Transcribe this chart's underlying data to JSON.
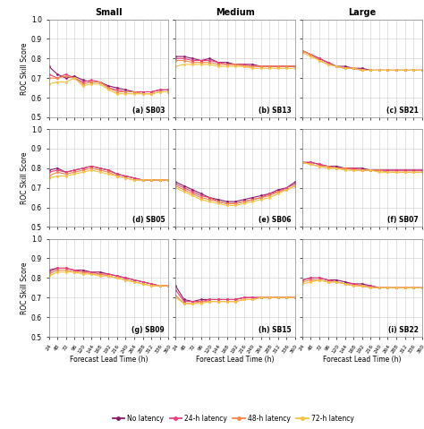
{
  "x_ticks": [
    24,
    48,
    72,
    96,
    120,
    144,
    168,
    192,
    216,
    240,
    264,
    288,
    312,
    336,
    360
  ],
  "col_titles": [
    "Small",
    "Medium",
    "Large"
  ],
  "colors": [
    "#8B1A6B",
    "#E8417A",
    "#F4874B",
    "#F5C242"
  ],
  "legend_labels": [
    "No latency",
    "24-h latency",
    "48-h latency",
    "72-h latency"
  ],
  "ylim": [
    0.5,
    1.0
  ],
  "yticks": [
    0.5,
    0.6,
    0.7,
    0.8,
    0.9,
    1.0
  ],
  "data": {
    "SB03": [
      [
        0.76,
        0.72,
        0.7,
        0.71,
        0.69,
        0.68,
        0.68,
        0.66,
        0.65,
        0.64,
        0.63,
        0.63,
        0.63,
        0.64,
        0.64
      ],
      [
        0.72,
        0.7,
        0.72,
        0.7,
        0.68,
        0.69,
        0.68,
        0.65,
        0.64,
        0.63,
        0.63,
        0.63,
        0.63,
        0.64,
        0.64
      ],
      [
        0.7,
        0.7,
        0.71,
        0.7,
        0.67,
        0.68,
        0.68,
        0.65,
        0.63,
        0.63,
        0.63,
        0.62,
        0.62,
        0.63,
        0.63
      ],
      [
        0.67,
        0.68,
        0.68,
        0.7,
        0.66,
        0.67,
        0.67,
        0.64,
        0.62,
        0.62,
        0.62,
        0.62,
        0.62,
        0.63,
        0.63
      ]
    ],
    "SB13": [
      [
        0.81,
        0.81,
        0.8,
        0.79,
        0.8,
        0.78,
        0.78,
        0.77,
        0.77,
        0.77,
        0.76,
        0.76,
        0.76,
        0.76,
        0.76
      ],
      [
        0.8,
        0.8,
        0.79,
        0.79,
        0.79,
        0.78,
        0.77,
        0.77,
        0.77,
        0.76,
        0.76,
        0.76,
        0.76,
        0.76,
        0.76
      ],
      [
        0.79,
        0.79,
        0.78,
        0.78,
        0.78,
        0.77,
        0.77,
        0.77,
        0.76,
        0.76,
        0.76,
        0.76,
        0.76,
        0.76,
        0.76
      ],
      [
        0.76,
        0.77,
        0.77,
        0.77,
        0.77,
        0.76,
        0.76,
        0.76,
        0.76,
        0.75,
        0.75,
        0.75,
        0.75,
        0.75,
        0.75
      ]
    ],
    "SB21": [
      [
        0.84,
        0.82,
        0.8,
        0.78,
        0.76,
        0.76,
        0.75,
        0.75,
        0.74,
        0.74,
        0.74,
        0.74,
        0.74,
        0.74,
        0.74
      ],
      [
        0.84,
        0.82,
        0.8,
        0.78,
        0.76,
        0.75,
        0.75,
        0.74,
        0.74,
        0.74,
        0.74,
        0.74,
        0.74,
        0.74,
        0.74
      ],
      [
        0.84,
        0.82,
        0.79,
        0.77,
        0.76,
        0.75,
        0.75,
        0.74,
        0.74,
        0.74,
        0.74,
        0.74,
        0.74,
        0.74,
        0.74
      ],
      [
        0.83,
        0.81,
        0.79,
        0.77,
        0.76,
        0.75,
        0.75,
        0.74,
        0.74,
        0.74,
        0.74,
        0.74,
        0.74,
        0.74,
        0.74
      ]
    ],
    "SB05": [
      [
        0.79,
        0.8,
        0.78,
        0.79,
        0.8,
        0.81,
        0.8,
        0.79,
        0.77,
        0.76,
        0.75,
        0.74,
        0.74,
        0.74,
        0.74
      ],
      [
        0.78,
        0.79,
        0.78,
        0.79,
        0.8,
        0.81,
        0.8,
        0.79,
        0.77,
        0.76,
        0.75,
        0.74,
        0.74,
        0.74,
        0.74
      ],
      [
        0.76,
        0.78,
        0.77,
        0.78,
        0.79,
        0.8,
        0.79,
        0.78,
        0.76,
        0.75,
        0.74,
        0.74,
        0.74,
        0.74,
        0.74
      ],
      [
        0.75,
        0.76,
        0.76,
        0.77,
        0.78,
        0.79,
        0.78,
        0.77,
        0.76,
        0.75,
        0.74,
        0.74,
        0.74,
        0.74,
        0.74
      ]
    ],
    "SB06": [
      [
        0.73,
        0.71,
        0.69,
        0.67,
        0.65,
        0.64,
        0.63,
        0.63,
        0.64,
        0.65,
        0.66,
        0.67,
        0.69,
        0.7,
        0.73
      ],
      [
        0.72,
        0.7,
        0.68,
        0.66,
        0.65,
        0.63,
        0.62,
        0.62,
        0.63,
        0.64,
        0.65,
        0.67,
        0.68,
        0.7,
        0.72
      ],
      [
        0.71,
        0.69,
        0.67,
        0.65,
        0.64,
        0.63,
        0.62,
        0.62,
        0.63,
        0.64,
        0.65,
        0.66,
        0.68,
        0.69,
        0.71
      ],
      [
        0.7,
        0.68,
        0.66,
        0.64,
        0.63,
        0.62,
        0.61,
        0.61,
        0.62,
        0.63,
        0.64,
        0.65,
        0.67,
        0.69,
        0.71
      ]
    ],
    "SB07": [
      [
        0.83,
        0.83,
        0.82,
        0.81,
        0.81,
        0.8,
        0.8,
        0.8,
        0.79,
        0.79,
        0.79,
        0.79,
        0.79,
        0.79,
        0.79
      ],
      [
        0.83,
        0.83,
        0.82,
        0.81,
        0.8,
        0.8,
        0.8,
        0.79,
        0.79,
        0.79,
        0.79,
        0.79,
        0.79,
        0.79,
        0.79
      ],
      [
        0.83,
        0.82,
        0.81,
        0.81,
        0.8,
        0.8,
        0.79,
        0.79,
        0.79,
        0.79,
        0.78,
        0.78,
        0.78,
        0.78,
        0.78
      ],
      [
        0.83,
        0.82,
        0.81,
        0.8,
        0.8,
        0.79,
        0.79,
        0.79,
        0.79,
        0.78,
        0.78,
        0.78,
        0.78,
        0.78,
        0.78
      ]
    ],
    "SB09": [
      [
        0.84,
        0.85,
        0.85,
        0.84,
        0.84,
        0.83,
        0.83,
        0.82,
        0.81,
        0.8,
        0.79,
        0.78,
        0.77,
        0.76,
        0.76
      ],
      [
        0.83,
        0.85,
        0.85,
        0.84,
        0.83,
        0.83,
        0.82,
        0.82,
        0.81,
        0.8,
        0.79,
        0.78,
        0.77,
        0.76,
        0.76
      ],
      [
        0.82,
        0.84,
        0.84,
        0.83,
        0.83,
        0.82,
        0.82,
        0.81,
        0.8,
        0.79,
        0.78,
        0.77,
        0.76,
        0.76,
        0.76
      ],
      [
        0.81,
        0.83,
        0.83,
        0.83,
        0.82,
        0.82,
        0.81,
        0.81,
        0.8,
        0.79,
        0.78,
        0.77,
        0.76,
        0.76,
        0.76
      ]
    ],
    "SB15": [
      [
        0.76,
        0.69,
        0.68,
        0.69,
        0.69,
        0.69,
        0.69,
        0.69,
        0.7,
        0.7,
        0.7,
        0.7,
        0.7,
        0.7,
        0.7
      ],
      [
        0.74,
        0.68,
        0.68,
        0.68,
        0.69,
        0.69,
        0.69,
        0.69,
        0.7,
        0.7,
        0.7,
        0.7,
        0.7,
        0.7,
        0.7
      ],
      [
        0.71,
        0.67,
        0.67,
        0.68,
        0.68,
        0.68,
        0.68,
        0.68,
        0.69,
        0.69,
        0.7,
        0.7,
        0.7,
        0.7,
        0.7
      ],
      [
        0.7,
        0.67,
        0.67,
        0.67,
        0.68,
        0.68,
        0.68,
        0.68,
        0.69,
        0.69,
        0.7,
        0.7,
        0.7,
        0.7,
        0.7
      ]
    ],
    "SB22": [
      [
        0.79,
        0.8,
        0.8,
        0.79,
        0.79,
        0.78,
        0.77,
        0.77,
        0.76,
        0.75,
        0.75,
        0.75,
        0.75,
        0.75,
        0.75
      ],
      [
        0.79,
        0.8,
        0.8,
        0.79,
        0.78,
        0.77,
        0.77,
        0.76,
        0.76,
        0.75,
        0.75,
        0.75,
        0.75,
        0.75,
        0.75
      ],
      [
        0.78,
        0.79,
        0.79,
        0.78,
        0.78,
        0.77,
        0.76,
        0.76,
        0.75,
        0.75,
        0.75,
        0.75,
        0.75,
        0.75,
        0.75
      ],
      [
        0.77,
        0.78,
        0.79,
        0.78,
        0.78,
        0.77,
        0.76,
        0.76,
        0.75,
        0.75,
        0.75,
        0.75,
        0.75,
        0.75,
        0.75
      ]
    ]
  },
  "subplot_layout": [
    [
      "SB03",
      "SB13",
      "SB21"
    ],
    [
      "SB05",
      "SB06",
      "SB07"
    ],
    [
      "SB09",
      "SB15",
      "SB22"
    ]
  ],
  "subplot_labels": [
    [
      "(a) SB03",
      "(b) SB13",
      "(c) SB21"
    ],
    [
      "(d) SB05",
      "(e) SB06",
      "(f) SB07"
    ],
    [
      "(g) SB09",
      "(h) SB15",
      "(i) SB22"
    ]
  ]
}
